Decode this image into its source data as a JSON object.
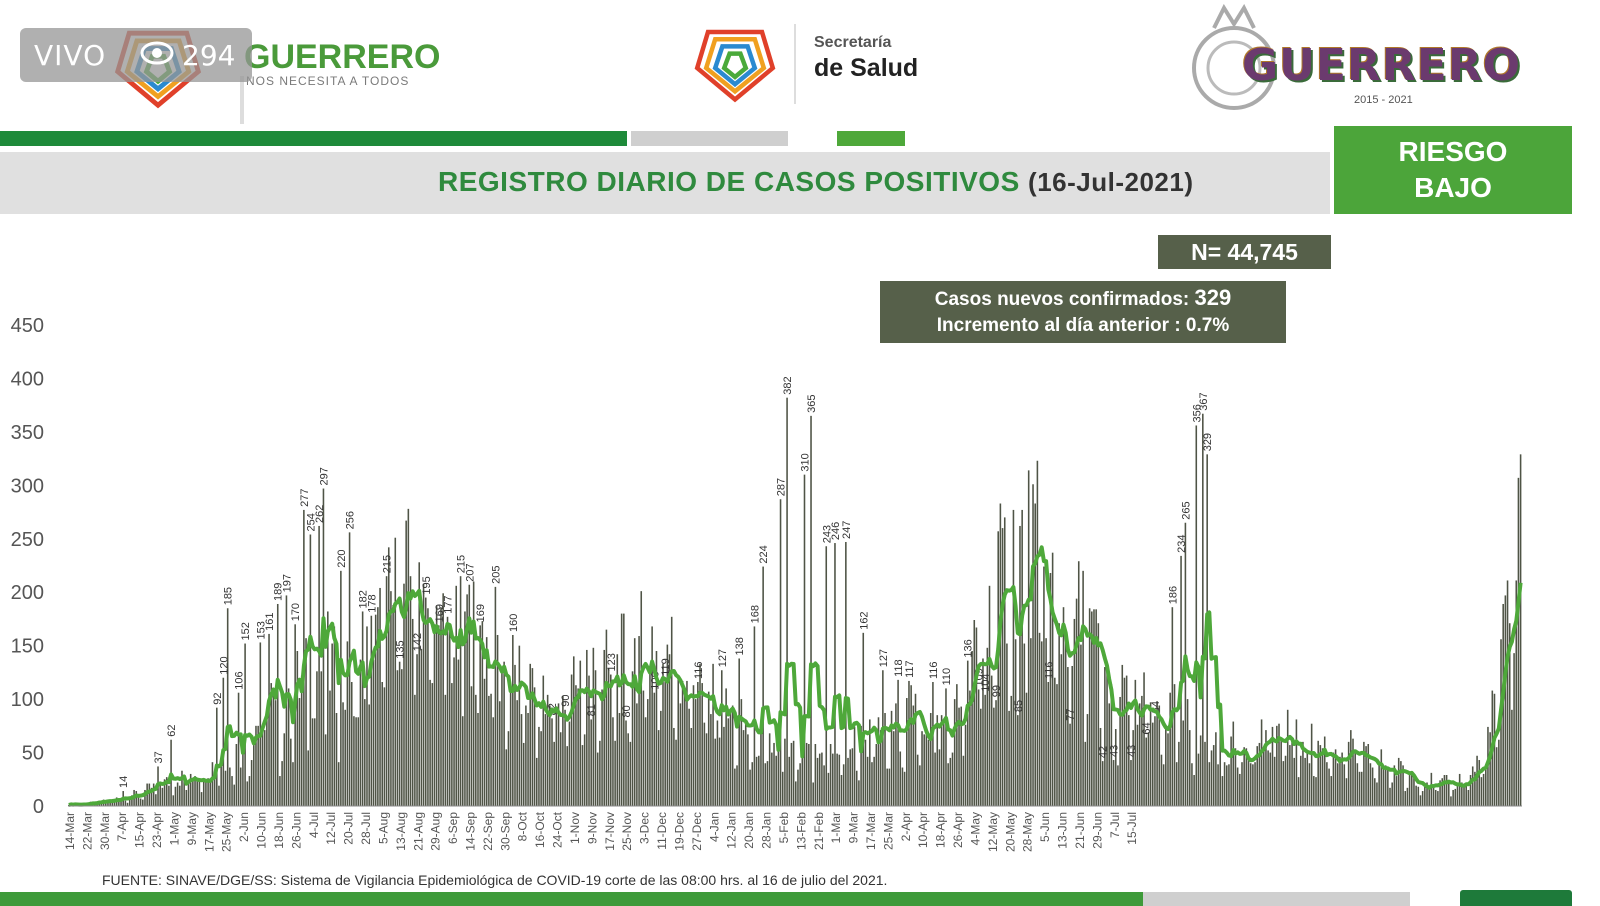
{
  "header": {
    "live_badge": {
      "label": "VIVO",
      "viewers": "294"
    },
    "left_logo": {
      "title": "GUERRERO",
      "subtitle": "NOS NECESITA A TODOS"
    },
    "center_logo": {
      "line1": "Secretaría",
      "line2": "de Salud"
    },
    "right_logo": {
      "title": "GUERRERO",
      "years": "2015 - 2021"
    }
  },
  "title": {
    "main": "REGISTRO DIARIO DE CASOS POSITIVOS",
    "date": "(16-Jul-2021)"
  },
  "risk": {
    "line1": "RIESGO",
    "line2": "BAJO"
  },
  "summary": {
    "n_label": "N= 44,745",
    "new_cases_label": "Casos nuevos confirmados:",
    "new_cases_value": "329",
    "increment_label": "Incremento al día anterior : 0.7%"
  },
  "source": "FUENTE:  SINAVE/DGE/SS:  Sistema de Vigilancia Epidemiológica de COVID-19 corte de las 08:00 hrs. al 16 de julio del 2021.",
  "colors": {
    "bar": "#4f5446",
    "line": "#4ea83a",
    "brand_green": "#2f8a3e",
    "panel": "#56604a"
  },
  "chart_data": {
    "type": "bar",
    "title": "REGISTRO DIARIO DE CASOS POSITIVOS",
    "xlabel": "",
    "ylabel": "",
    "ylim": [
      0,
      450
    ],
    "yticks": [
      0,
      50,
      100,
      150,
      200,
      250,
      300,
      350,
      400,
      450
    ],
    "grid": false,
    "legend": "none",
    "xtick_labels": [
      "14-Mar",
      "22-Mar",
      "30-Mar",
      "7-Apr",
      "15-Apr",
      "23-Apr",
      "1-May",
      "9-May",
      "17-May",
      "25-May",
      "2-Jun",
      "10-Jun",
      "18-Jun",
      "26-Jun",
      "4-Jul",
      "12-Jul",
      "20-Jul",
      "28-Jul",
      "5-Aug",
      "13-Aug",
      "21-Aug",
      "29-Aug",
      "6-Sep",
      "14-Sep",
      "22-Sep",
      "30-Sep",
      "8-Oct",
      "16-Oct",
      "24-Oct",
      "1-Nov",
      "9-Nov",
      "17-Nov",
      "25-Nov",
      "3-Dec",
      "11-Dec",
      "19-Dec",
      "27-Dec",
      "4-Jan",
      "12-Jan",
      "20-Jan",
      "28-Jan",
      "5-Feb",
      "13-Feb",
      "21-Feb",
      "1-Mar",
      "9-Mar",
      "17-Mar",
      "25-Mar",
      "2-Apr",
      "10-Apr",
      "18-Apr",
      "26-Apr",
      "4-May",
      "12-May",
      "20-May",
      "28-May",
      "5-Jun",
      "13-Jun",
      "21-Jun",
      "29-Jun",
      "7-Jul",
      "15-Jul"
    ],
    "series": [
      {
        "type": "bar",
        "anchors": [
          [
            0,
            1
          ],
          [
            7,
            2
          ],
          [
            14,
            4
          ],
          [
            21,
            6
          ],
          [
            28,
            10
          ],
          [
            35,
            14
          ],
          [
            42,
            20
          ],
          [
            49,
            24
          ],
          [
            56,
            30
          ],
          [
            63,
            36
          ],
          [
            70,
            40
          ],
          [
            77,
            50
          ],
          [
            84,
            60
          ],
          [
            91,
            110
          ],
          [
            98,
            60
          ],
          [
            105,
            110
          ],
          [
            112,
            120
          ],
          [
            119,
            130
          ],
          [
            126,
            110
          ],
          [
            133,
            125
          ],
          [
            140,
            140
          ],
          [
            147,
            180
          ],
          [
            154,
            200
          ],
          [
            161,
            215
          ],
          [
            168,
            165
          ],
          [
            175,
            145
          ],
          [
            182,
            155
          ],
          [
            189,
            160
          ],
          [
            196,
            130
          ],
          [
            203,
            120
          ],
          [
            210,
            110
          ],
          [
            217,
            95
          ],
          [
            224,
            90
          ],
          [
            231,
            115
          ],
          [
            238,
            130
          ],
          [
            245,
            120
          ],
          [
            252,
            125
          ],
          [
            259,
            140
          ],
          [
            266,
            150
          ],
          [
            273,
            155
          ],
          [
            280,
            130
          ],
          [
            287,
            125
          ],
          [
            294,
            100
          ],
          [
            301,
            85
          ],
          [
            308,
            75
          ],
          [
            315,
            65
          ],
          [
            322,
            55
          ],
          [
            329,
            50
          ],
          [
            336,
            45
          ],
          [
            343,
            45
          ],
          [
            350,
            50
          ],
          [
            357,
            55
          ],
          [
            364,
            60
          ],
          [
            371,
            62
          ],
          [
            378,
            68
          ],
          [
            385,
            80
          ],
          [
            392,
            85
          ],
          [
            399,
            70
          ],
          [
            406,
            75
          ],
          [
            413,
            120
          ],
          [
            420,
            150
          ],
          [
            427,
            200
          ],
          [
            434,
            230
          ],
          [
            441,
            235
          ],
          [
            448,
            230
          ],
          [
            455,
            170
          ],
          [
            462,
            175
          ],
          [
            469,
            160
          ],
          [
            476,
            120
          ],
          [
            483,
            100
          ],
          [
            490,
            95
          ],
          [
            497,
            90
          ],
          [
            504,
            85
          ],
          [
            511,
            80
          ],
          [
            518,
            70
          ],
          [
            525,
            60
          ],
          [
            532,
            55
          ],
          [
            539,
            60
          ],
          [
            546,
            62
          ],
          [
            553,
            70
          ],
          [
            560,
            65
          ],
          [
            567,
            60
          ],
          [
            574,
            55
          ],
          [
            581,
            55
          ],
          [
            588,
            52
          ],
          [
            595,
            45
          ],
          [
            602,
            40
          ],
          [
            609,
            35
          ],
          [
            616,
            30
          ],
          [
            623,
            25
          ],
          [
            630,
            20
          ],
          [
            637,
            22
          ],
          [
            644,
            30
          ],
          [
            651,
            50
          ],
          [
            658,
            120
          ],
          [
            662,
            200
          ],
          [
            665,
            240
          ],
          [
            667,
            330
          ]
        ],
        "annotations": [
          [
            25,
            14
          ],
          [
            41,
            37
          ],
          [
            47,
            62
          ],
          [
            68,
            92
          ],
          [
            71,
            120
          ],
          [
            73,
            185
          ],
          [
            78,
            106
          ],
          [
            81,
            152
          ],
          [
            88,
            153
          ],
          [
            92,
            161
          ],
          [
            96,
            189
          ],
          [
            100,
            197
          ],
          [
            104,
            170
          ],
          [
            108,
            277
          ],
          [
            111,
            254
          ],
          [
            115,
            262
          ],
          [
            117,
            297
          ],
          [
            125,
            220
          ],
          [
            129,
            256
          ],
          [
            135,
            182
          ],
          [
            139,
            178
          ],
          [
            146,
            215
          ],
          [
            152,
            135
          ],
          [
            160,
            142
          ],
          [
            164,
            195
          ],
          [
            170,
            169
          ],
          [
            174,
            177
          ],
          [
            180,
            215
          ],
          [
            184,
            207
          ],
          [
            189,
            169
          ],
          [
            196,
            205
          ],
          [
            204,
            160
          ],
          [
            222,
            82
          ],
          [
            228,
            90
          ],
          [
            240,
            81
          ],
          [
            249,
            123
          ],
          [
            256,
            80
          ],
          [
            269,
            106
          ],
          [
            274,
            119
          ],
          [
            289,
            116
          ],
          [
            300,
            127
          ],
          [
            308,
            138
          ],
          [
            315,
            168
          ],
          [
            319,
            224
          ],
          [
            327,
            287
          ],
          [
            330,
            382
          ],
          [
            338,
            310
          ],
          [
            341,
            365
          ],
          [
            348,
            243
          ],
          [
            352,
            246
          ],
          [
            357,
            247
          ],
          [
            365,
            162
          ],
          [
            374,
            127
          ],
          [
            381,
            118
          ],
          [
            386,
            117
          ],
          [
            397,
            116
          ],
          [
            403,
            110
          ],
          [
            413,
            136
          ],
          [
            418,
            109
          ],
          [
            421,
            104
          ],
          [
            426,
            99
          ],
          [
            436,
            85
          ],
          [
            450,
            116
          ],
          [
            460,
            77
          ],
          [
            475,
            42
          ],
          [
            480,
            43
          ],
          [
            488,
            43
          ],
          [
            495,
            64
          ],
          [
            499,
            84
          ],
          [
            507,
            186
          ],
          [
            511,
            234
          ],
          [
            513,
            265
          ],
          [
            518,
            356
          ],
          [
            521,
            367
          ],
          [
            523,
            329
          ]
        ]
      },
      {
        "type": "line",
        "smoothing": "rolling average"
      }
    ],
    "first_date": "14-Mar",
    "last_date": "15-Jul",
    "last_value": 329
  }
}
